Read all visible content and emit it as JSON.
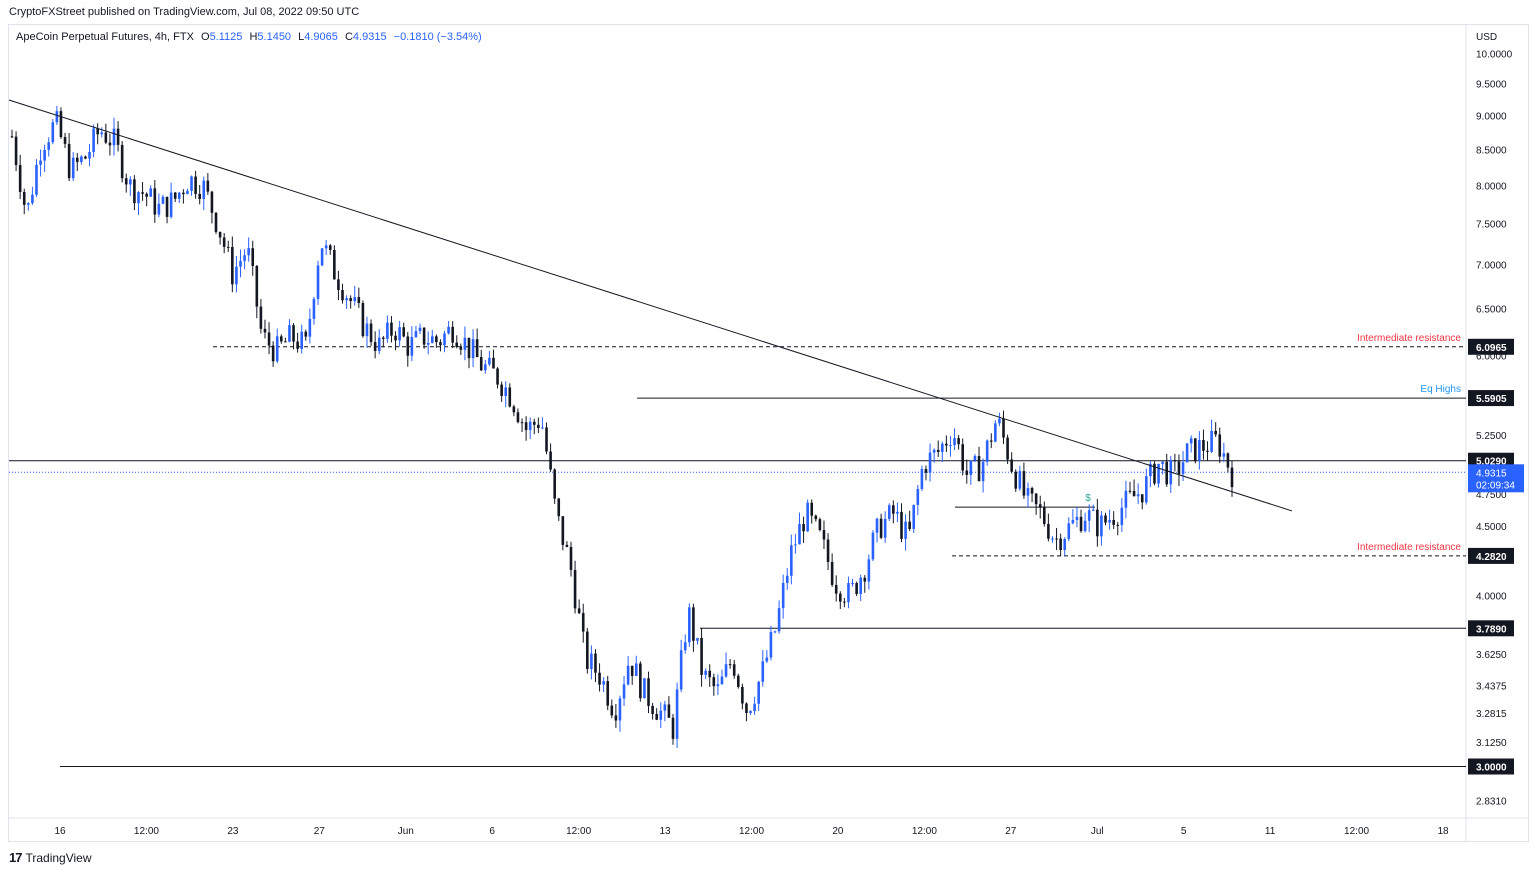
{
  "header": {
    "published_by": "CryptoFXStreet published on TradingView.com, Jul 08, 2022 09:50 UTC"
  },
  "legend": {
    "symbol": "ApeCoin Perpetual Futures, 4h, FTX",
    "open_label": "O",
    "open": "5.1125",
    "high_label": "H",
    "high": "5.1450",
    "low_label": "L",
    "low": "4.9065",
    "close_label": "C",
    "close": "4.9315",
    "change": "−0.1810 (−3.54%)"
  },
  "footer": {
    "logo_text": "TradingView",
    "logo_mark": "17"
  },
  "colors": {
    "bull": "#2962ff",
    "bear": "#131722",
    "resistance_label": "#f23645",
    "eq_highs_label": "#2196f3",
    "price_badge": "#2962ff",
    "level_badge": "#131722"
  },
  "chart_data": {
    "type": "candlestick",
    "currency": "USD",
    "y_scale": "log",
    "ylim": [
      2.75,
      10.5
    ],
    "y_ticks": [
      "10.0000",
      "9.5000",
      "9.0000",
      "8.5000",
      "8.0000",
      "7.5000",
      "7.0000",
      "6.5000",
      "6.0000",
      "5.2500",
      "4.7500",
      "4.5000",
      "4.0000",
      "3.6250",
      "3.4375",
      "3.2815",
      "3.1250",
      "2.8310"
    ],
    "x_ticks": [
      "16",
      "12:00",
      "23",
      "27",
      "Jun",
      "6",
      "12:00",
      "13",
      "12:00",
      "20",
      "12:00",
      "27",
      "Jul",
      "5",
      "11",
      "12:00",
      "18"
    ],
    "current_price": {
      "value": "4.9315",
      "countdown": "02:09:34"
    },
    "levels": [
      {
        "value": "6.0965",
        "label": "Intermediate resistance",
        "style": "dashed"
      },
      {
        "value": "5.5905",
        "label": "Eq Highs",
        "style": "solid"
      },
      {
        "value": "5.0290",
        "label": "",
        "style": "solid"
      },
      {
        "value": "4.2820",
        "label": "Intermediate resistance",
        "style": "dashed"
      },
      {
        "value": "3.7890",
        "label": "",
        "style": "solid"
      },
      {
        "value": "3.0000",
        "label": "",
        "style": "solid"
      }
    ],
    "trendline": {
      "from": [
        0,
        9.25
      ],
      "to": [
        1.0,
        4.62
      ]
    },
    "extra_line": {
      "value": 4.65,
      "marker": "$"
    },
    "close_path": [
      8.7,
      7.6,
      8.6,
      8.9,
      8.2,
      8.4,
      8.8,
      8.6,
      8.0,
      7.9,
      7.7,
      7.8,
      8.1,
      8.0,
      7.5,
      6.9,
      7.2,
      6.2,
      6.05,
      6.2,
      6.1,
      7.3,
      6.9,
      6.6,
      6.3,
      6.1,
      6.3,
      6.1,
      6.2,
      6.15,
      6.3,
      6.1,
      5.9,
      5.8,
      5.6,
      5.3,
      5.4,
      4.6,
      4.2,
      3.6,
      3.5,
      3.3,
      3.6,
      3.4,
      3.3,
      3.2,
      3.9,
      3.5,
      3.4,
      3.6,
      3.3,
      3.5,
      3.8,
      4.3,
      4.6,
      4.4,
      4.1,
      4.0,
      4.2,
      4.5,
      4.6,
      4.4,
      5.0,
      5.1,
      5.3,
      4.9,
      5.0,
      5.4,
      5.0,
      4.7,
      4.6,
      4.4,
      4.5,
      4.6,
      4.5,
      4.6,
      4.7,
      4.8,
      5.0,
      4.9,
      5.1,
      5.15,
      5.2,
      4.93
    ]
  }
}
